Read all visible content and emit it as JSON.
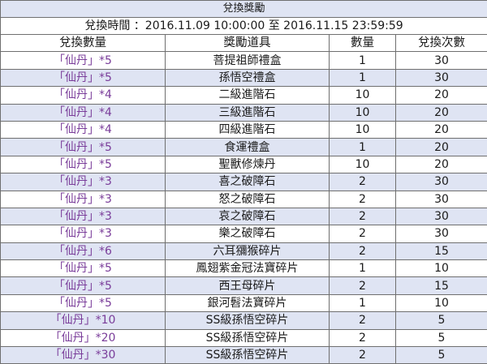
{
  "title": "兌換獎勵",
  "exchange_time": "兌換時間 ：2016.11.09  10:00:00 至 2016.11.15 23:59:59",
  "headers": [
    "兌換數量",
    "獎勵道具",
    "數量",
    "兌換次數"
  ],
  "rows": [
    {
      "cost_item": "「仙丹」",
      "cost_qty": "*5",
      "reward": "菩提祖師禮盒",
      "qty": "1",
      "times": "30"
    },
    {
      "cost_item": "「仙丹」",
      "cost_qty": "*5",
      "reward": "孫悟空禮盒",
      "qty": "1",
      "times": "30"
    },
    {
      "cost_item": "「仙丹」",
      "cost_qty": "*4",
      "reward": "二級進階石",
      "qty": "10",
      "times": "20"
    },
    {
      "cost_item": "「仙丹」",
      "cost_qty": "*4",
      "reward": "三級進階石",
      "qty": "10",
      "times": "20"
    },
    {
      "cost_item": "「仙丹」",
      "cost_qty": "*4",
      "reward": "四級進階石",
      "qty": "10",
      "times": "20"
    },
    {
      "cost_item": "「仙丹」",
      "cost_qty": "*5",
      "reward": "食運禮盒",
      "qty": "1",
      "times": "20"
    },
    {
      "cost_item": "「仙丹」",
      "cost_qty": "*5",
      "reward": "聖獸修煉丹",
      "qty": "10",
      "times": "20"
    },
    {
      "cost_item": "「仙丹」",
      "cost_qty": "*3",
      "reward": "喜之破障石",
      "qty": "2",
      "times": "30"
    },
    {
      "cost_item": "「仙丹」",
      "cost_qty": "*3",
      "reward": "怒之破障石",
      "qty": "2",
      "times": "30"
    },
    {
      "cost_item": "「仙丹」",
      "cost_qty": "*3",
      "reward": "哀之破障石",
      "qty": "2",
      "times": "30"
    },
    {
      "cost_item": "「仙丹」",
      "cost_qty": "*3",
      "reward": "樂之破障石",
      "qty": "2",
      "times": "30"
    },
    {
      "cost_item": "「仙丹」",
      "cost_qty": "*6",
      "reward": "六耳獼猴碎片",
      "qty": "2",
      "times": "15"
    },
    {
      "cost_item": "「仙丹」",
      "cost_qty": "*5",
      "reward": "鳳翅紫金冠法寶碎片",
      "qty": "1",
      "times": "10"
    },
    {
      "cost_item": "「仙丹」",
      "cost_qty": "*5",
      "reward": "西王母碎片",
      "qty": "2",
      "times": "15"
    },
    {
      "cost_item": "「仙丹」",
      "cost_qty": "*5",
      "reward": "銀河髫法寶碎片",
      "qty": "1",
      "times": "10"
    },
    {
      "cost_item": "「仙丹」",
      "cost_qty": "*10",
      "reward": "SS級孫悟空碎片",
      "qty": "2",
      "times": "5"
    },
    {
      "cost_item": "「仙丹」",
      "cost_qty": "*20",
      "reward": "SS級孫悟空碎片",
      "qty": "2",
      "times": "5"
    },
    {
      "cost_item": "「仙丹」",
      "cost_qty": "*30",
      "reward": "SS級孫悟空碎片",
      "qty": "2",
      "times": "5"
    }
  ]
}
